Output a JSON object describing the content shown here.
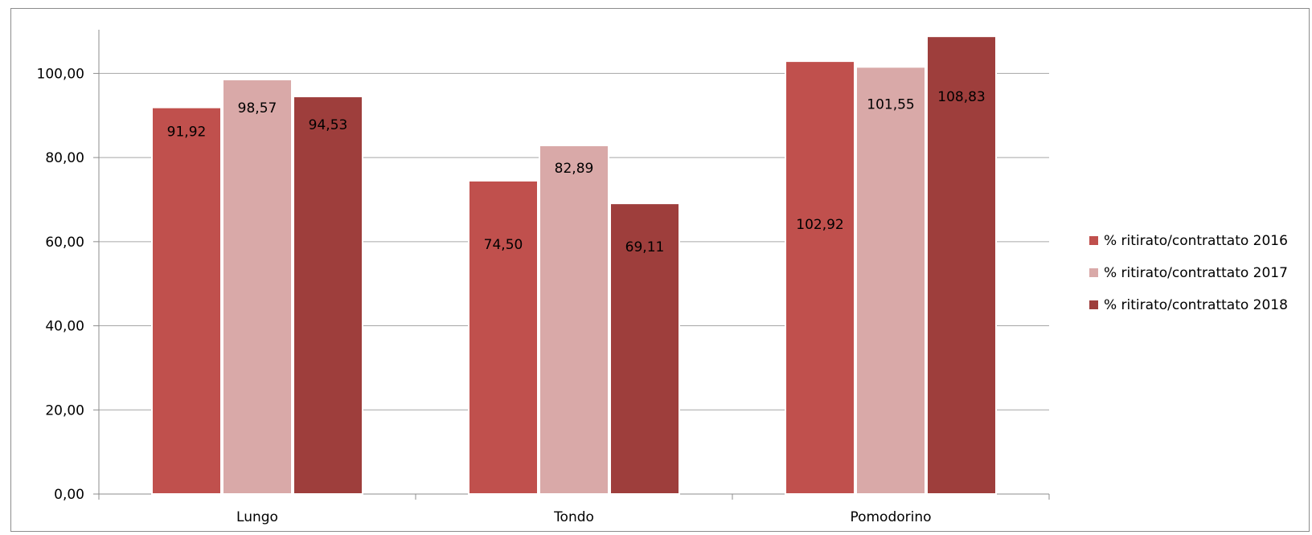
{
  "chart_data": {
    "type": "bar",
    "title": "",
    "xlabel": "",
    "ylabel": "",
    "categories": [
      "Lungo",
      "Tondo",
      "Pomodorino"
    ],
    "series": [
      {
        "name": "% ritirato/contrattato 2016",
        "color": "#C0504D",
        "values": [
          91.92,
          74.5,
          102.92
        ],
        "labels": [
          "91,92",
          "74,50",
          "102,92"
        ]
      },
      {
        "name": "% ritirato/contrattato 2017",
        "color": "#D9A9A8",
        "values": [
          98.57,
          82.89,
          101.55
        ],
        "labels": [
          "98,57",
          "82,89",
          "101,55"
        ]
      },
      {
        "name": "% ritirato/contrattato 2018",
        "color": "#9E3E3C",
        "values": [
          94.53,
          69.11,
          108.83
        ],
        "labels": [
          "94,53",
          "69,11",
          "108,83"
        ]
      }
    ],
    "ylim": [
      0,
      110
    ],
    "yticks": [
      {
        "value": 0,
        "label": "0,00"
      },
      {
        "value": 20,
        "label": "20,00"
      },
      {
        "value": 40,
        "label": "40,00"
      },
      {
        "value": 60,
        "label": "60,00"
      },
      {
        "value": 80,
        "label": "80,00"
      },
      {
        "value": 100,
        "label": "100,00"
      }
    ],
    "grid": true,
    "legend_position": "right"
  }
}
